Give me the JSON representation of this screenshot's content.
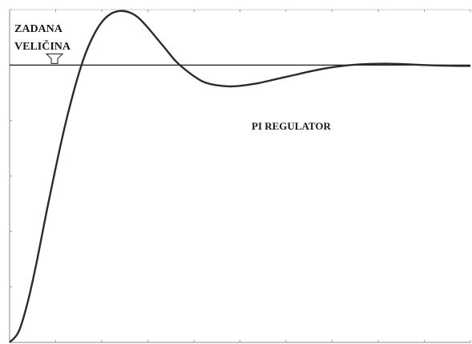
{
  "chart_data": {
    "type": "line",
    "title": "",
    "xlabel": "",
    "ylabel": "",
    "xlim": [
      0,
      10
    ],
    "ylim": [
      0,
      1.2
    ],
    "grid": false,
    "setpoint": {
      "value": 1.0,
      "label_line1": "ZADANA",
      "label_line2": "VELIČINA"
    },
    "annotations": [
      {
        "text": "PI REGULATOR"
      }
    ],
    "series": [
      {
        "x": [
          0.0,
          0.2,
          0.4,
          0.6,
          0.8,
          1.0,
          1.2,
          1.4,
          1.6,
          1.8,
          2.0,
          2.2,
          2.4,
          2.6,
          2.8,
          3.0,
          3.2,
          3.4,
          3.6,
          3.8,
          4.0,
          4.2,
          4.4,
          4.6,
          4.8,
          5.0,
          5.4,
          5.8,
          6.2,
          6.6,
          7.0,
          7.4,
          7.8,
          8.2,
          8.6,
          9.0,
          9.4,
          9.8,
          10.0
        ],
        "y": [
          0.0,
          0.04,
          0.15,
          0.3,
          0.47,
          0.63,
          0.78,
          0.91,
          1.02,
          1.1,
          1.155,
          1.185,
          1.195,
          1.19,
          1.17,
          1.135,
          1.095,
          1.055,
          1.015,
          0.985,
          0.96,
          0.94,
          0.93,
          0.925,
          0.923,
          0.925,
          0.935,
          0.95,
          0.965,
          0.98,
          0.992,
          1.0,
          1.004,
          1.005,
          1.003,
          1.0,
          0.998,
          0.997,
          0.997
        ]
      }
    ],
    "colors": {
      "line": "#2b2b2b",
      "axis": "#8a8a8a",
      "setpoint": "#000000"
    }
  }
}
